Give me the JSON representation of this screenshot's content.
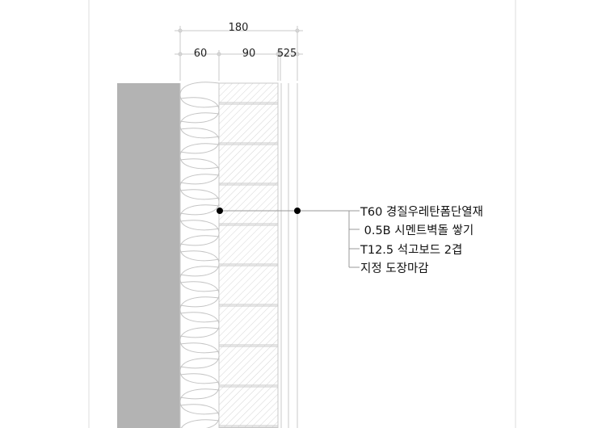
{
  "dimensions": {
    "overall": "180",
    "segments": [
      "60",
      "90",
      "5",
      "25"
    ]
  },
  "labels": [
    "T60 경질우레탄폼단열재",
    " 0.5B 시멘트벽돌 쌓기",
    "T12.5 석고보드 2겹",
    "지정 도장마감"
  ],
  "colors": {
    "concrete": "#b3b3b3",
    "line": "#c8c8c8",
    "leader": "#999999",
    "dot": "#000000"
  }
}
